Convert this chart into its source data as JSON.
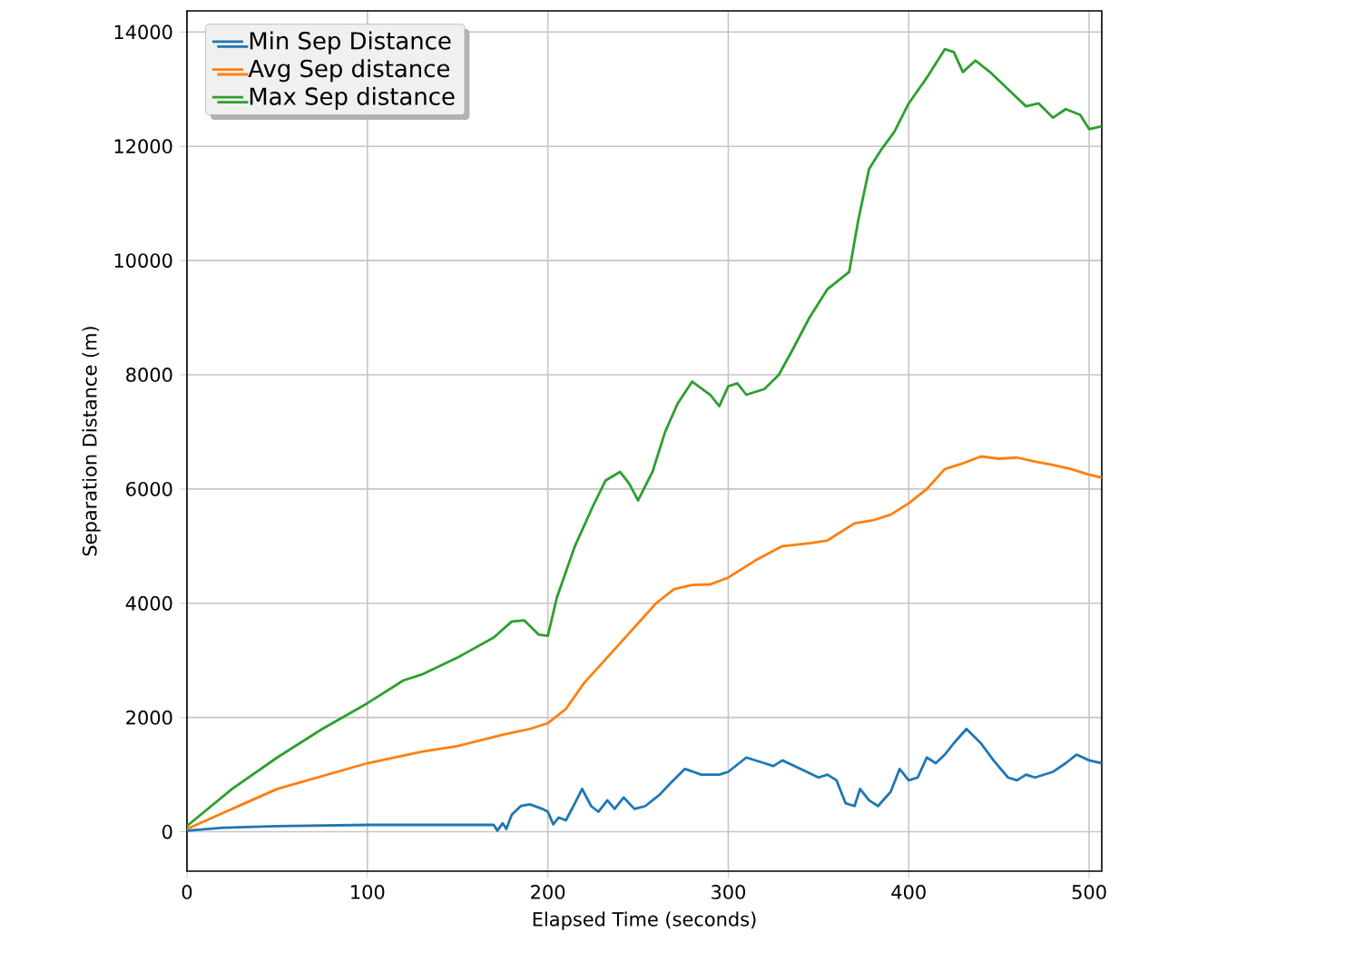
{
  "chart_data": {
    "type": "line",
    "xlabel": "Elapsed Time (seconds)",
    "ylabel": "Separation Distance (m)",
    "xlim": [
      0,
      507
    ],
    "ylim": [
      -690,
      14370
    ],
    "xticks": [
      0,
      100,
      200,
      300,
      400,
      500
    ],
    "yticks": [
      0,
      2000,
      4000,
      6000,
      8000,
      10000,
      12000,
      14000
    ],
    "grid": true,
    "legend": "top left",
    "series": [
      {
        "name": "Min Sep Distance",
        "color": "#1f77b4",
        "x": [
          0,
          20,
          50,
          100,
          150,
          170,
          172,
          175,
          177,
          180,
          185,
          190,
          197,
          200,
          203,
          206,
          210,
          215,
          219,
          224,
          228,
          233,
          237,
          242,
          248,
          254,
          262,
          268,
          276,
          285,
          295,
          300,
          310,
          320,
          325,
          330,
          340,
          350,
          355,
          360,
          365,
          370,
          373,
          378,
          383,
          390,
          395,
          400,
          405,
          410,
          415,
          420,
          425,
          432,
          440,
          447,
          455,
          460,
          465,
          470,
          480,
          487,
          493,
          500,
          507
        ],
        "values": [
          20,
          70,
          100,
          120,
          120,
          120,
          20,
          150,
          50,
          300,
          450,
          480,
          400,
          350,
          130,
          250,
          200,
          500,
          750,
          450,
          350,
          550,
          400,
          600,
          400,
          450,
          650,
          850,
          1100,
          1000,
          1000,
          1050,
          1300,
          1200,
          1150,
          1250,
          1100,
          950,
          1000,
          900,
          500,
          450,
          750,
          550,
          450,
          700,
          1100,
          900,
          950,
          1300,
          1200,
          1350,
          1550,
          1800,
          1550,
          1250,
          950,
          900,
          1000,
          950,
          1050,
          1200,
          1350,
          1250,
          1200
        ]
      },
      {
        "name": "Avg Sep distance",
        "color": "#ff7f0e",
        "x": [
          0,
          50,
          100,
          130,
          150,
          175,
          190,
          200,
          210,
          220,
          240,
          260,
          270,
          280,
          290,
          300,
          315,
          330,
          345,
          355,
          370,
          380,
          390,
          400,
          410,
          420,
          430,
          440,
          450,
          460,
          470,
          480,
          490,
          500,
          507
        ],
        "values": [
          50,
          750,
          1200,
          1400,
          1500,
          1700,
          1800,
          1900,
          2150,
          2600,
          3300,
          4000,
          4250,
          4320,
          4330,
          4450,
          4750,
          5000,
          5050,
          5100,
          5400,
          5450,
          5550,
          5750,
          6000,
          6350,
          6450,
          6570,
          6530,
          6550,
          6480,
          6420,
          6350,
          6250,
          6200
        ]
      },
      {
        "name": "Max Sep distance",
        "color": "#2ca02c",
        "x": [
          0,
          25,
          50,
          75,
          100,
          120,
          130,
          150,
          170,
          180,
          187,
          195,
          200,
          205,
          215,
          225,
          232,
          240,
          245,
          250,
          258,
          265,
          272,
          280,
          290,
          295,
          300,
          305,
          310,
          320,
          328,
          335,
          345,
          355,
          367,
          372,
          378,
          385,
          392,
          400,
          410,
          420,
          425,
          430,
          437,
          445,
          455,
          465,
          472,
          480,
          487,
          495,
          500,
          507
        ],
        "values": [
          100,
          750,
          1300,
          1800,
          2250,
          2650,
          2750,
          3050,
          3400,
          3680,
          3700,
          3450,
          3430,
          4100,
          5000,
          5700,
          6150,
          6300,
          6100,
          5800,
          6300,
          7000,
          7500,
          7880,
          7650,
          7450,
          7800,
          7850,
          7650,
          7750,
          8000,
          8400,
          9000,
          9500,
          9800,
          10700,
          11600,
          11950,
          12250,
          12750,
          13200,
          13700,
          13650,
          13300,
          13500,
          13300,
          13000,
          12700,
          12750,
          12500,
          12650,
          12550,
          12300,
          12350
        ]
      }
    ]
  }
}
